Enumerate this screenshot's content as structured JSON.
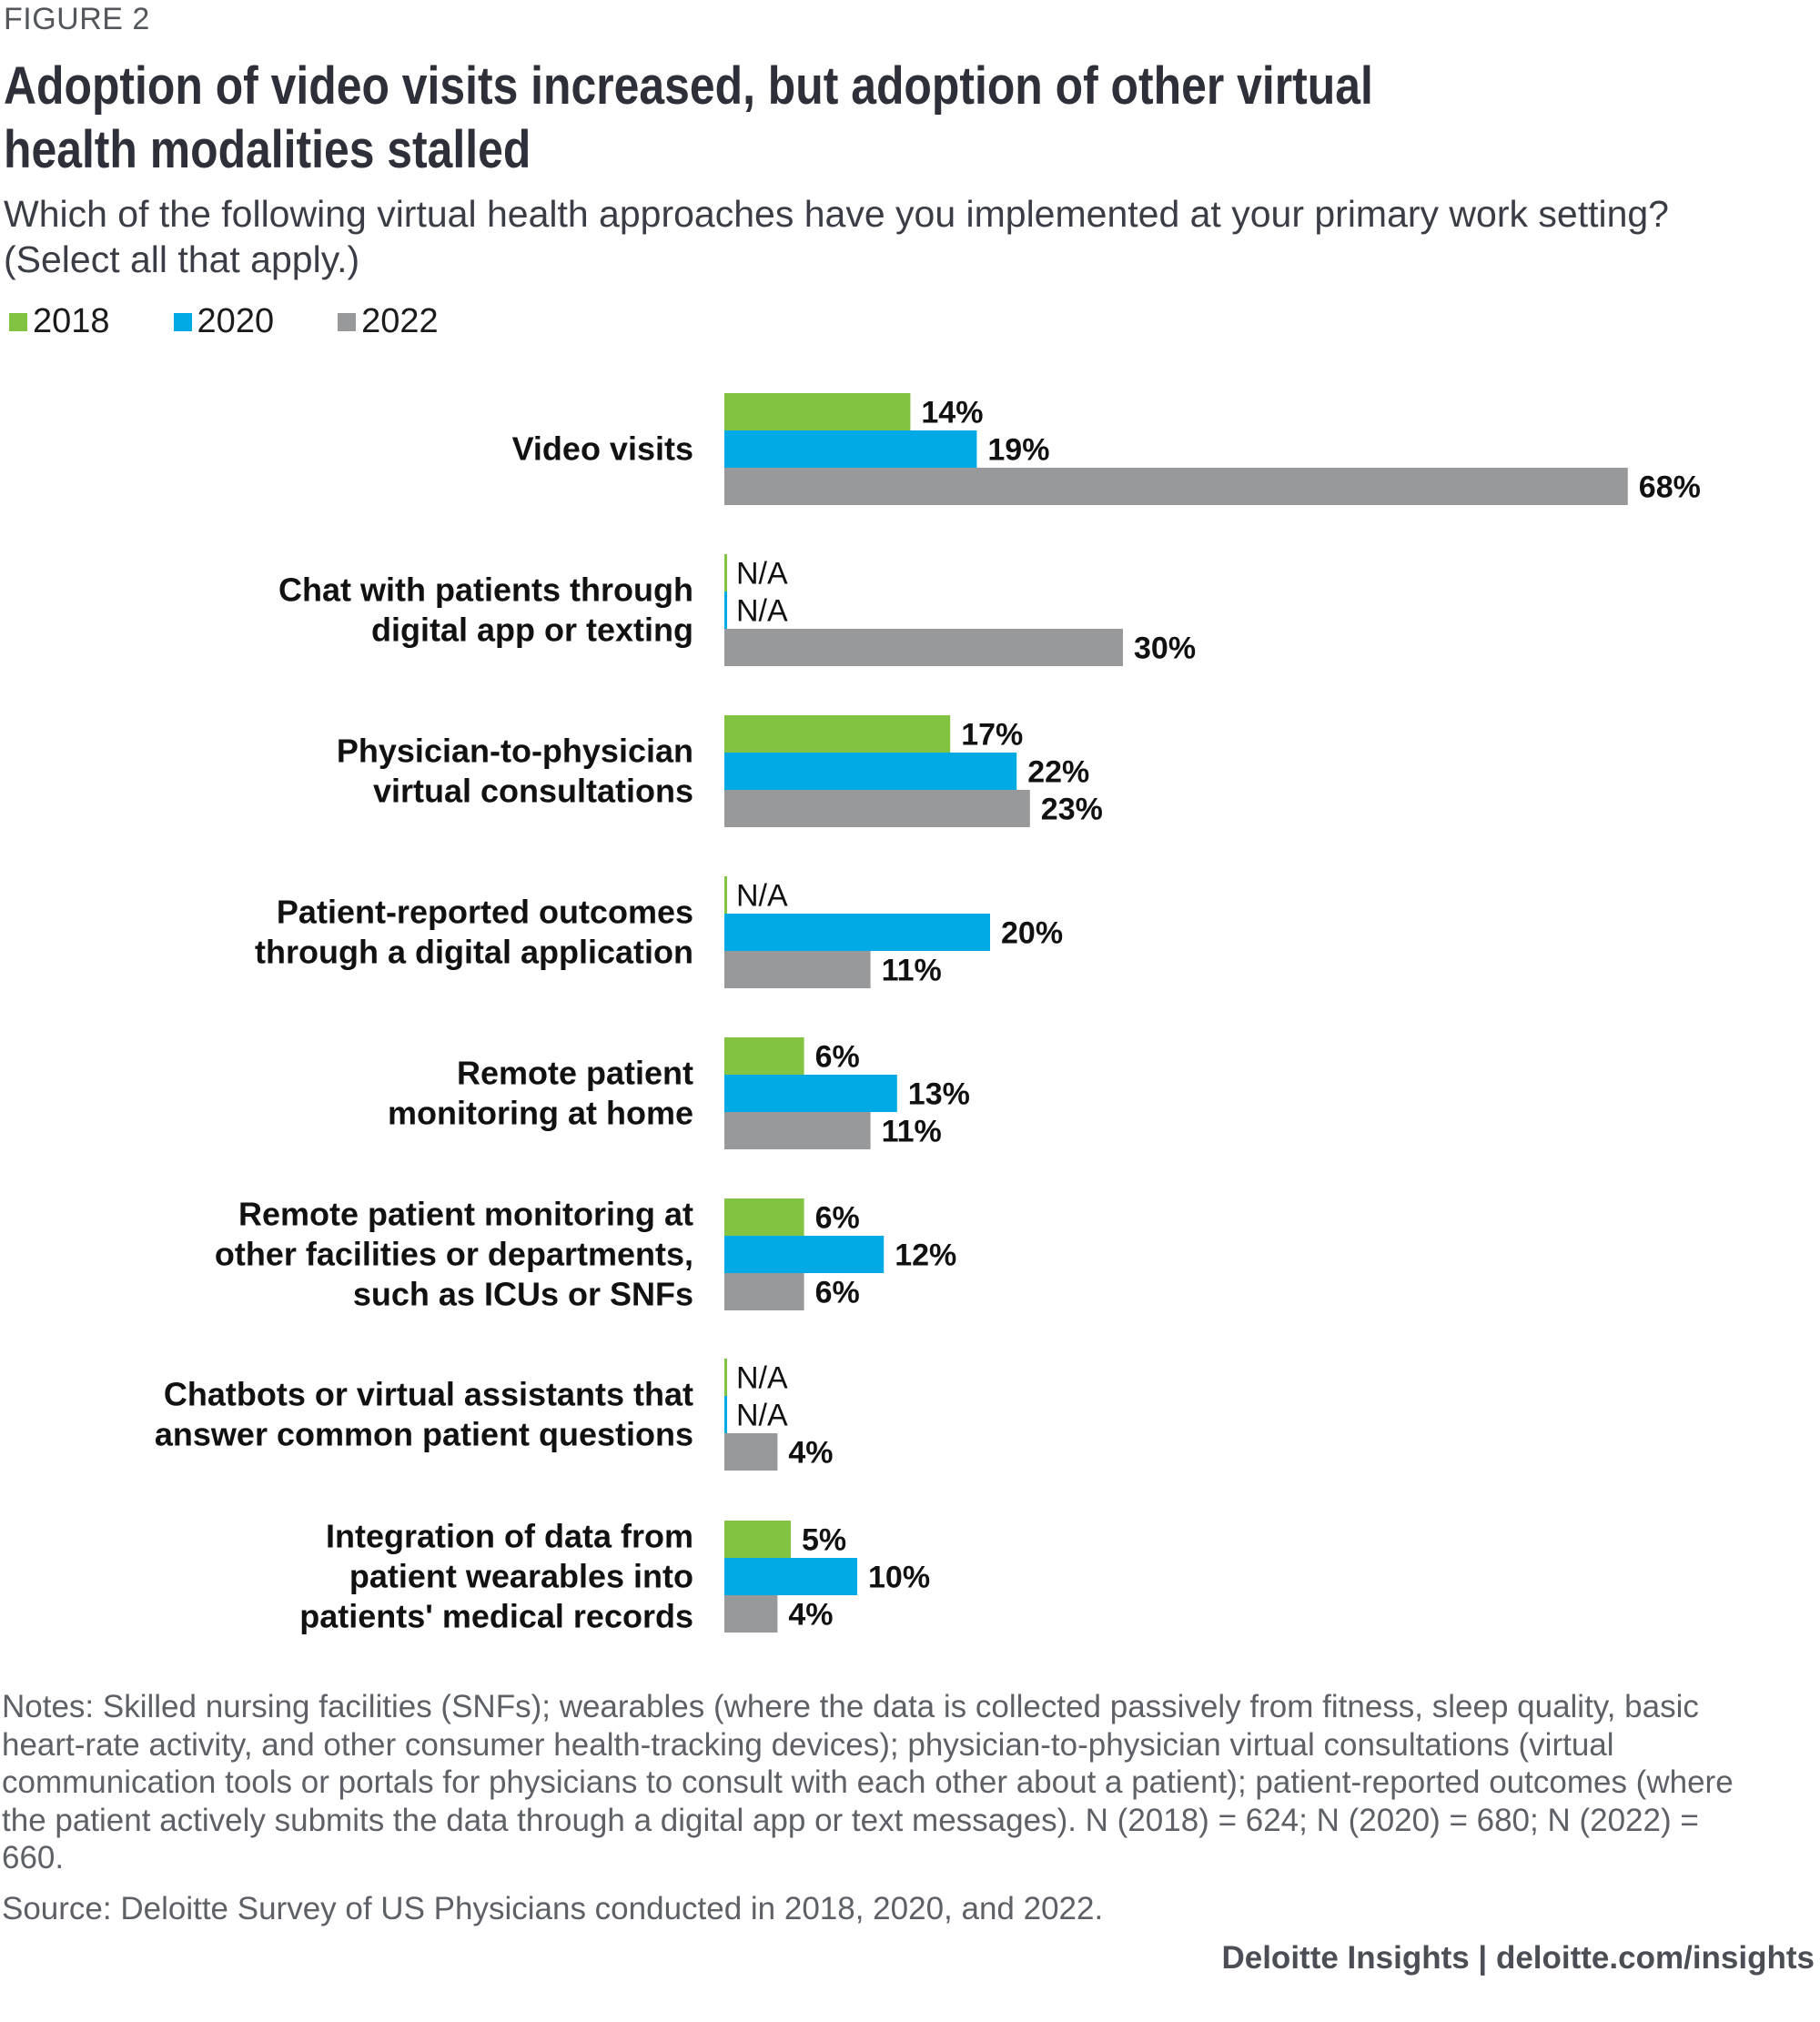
{
  "figure_label": "FIGURE 2",
  "title": "Adoption of video visits increased, but adoption of other virtual health modalities stalled",
  "subtitle": "Which of the following virtual health approaches have you implemented at your primary work setting? (Select all that apply.)",
  "colors": {
    "2018": "#82c341",
    "2020": "#00abe5",
    "2022": "#97999b"
  },
  "chart_data": {
    "type": "bar",
    "orientation": "horizontal",
    "title": "Adoption of video visits increased, but adoption of other virtual health modalities stalled",
    "xlabel": "",
    "ylabel": "",
    "xlim": [
      0,
      70
    ],
    "grid": false,
    "legend_position": "top-left",
    "categories": [
      [
        "Video visits"
      ],
      [
        "Chat with patients through",
        "digital app or texting"
      ],
      [
        "Physician-to-physician",
        "virtual consultations"
      ],
      [
        "Patient-reported outcomes",
        "through a digital application"
      ],
      [
        "Remote patient",
        "monitoring at home"
      ],
      [
        "Remote patient monitoring at",
        "other facilities or departments,",
        "such as ICUs or SNFs"
      ],
      [
        "Chatbots or virtual assistants that",
        "answer common patient questions"
      ],
      [
        "Integration of data from",
        "patient wearables into",
        "patients' medical records"
      ]
    ],
    "series": [
      {
        "name": "2018",
        "values": [
          14,
          null,
          17,
          null,
          6,
          6,
          null,
          5
        ],
        "labels": [
          "14%",
          "N/A",
          "17%",
          "N/A",
          "6%",
          "6%",
          "N/A",
          "5%"
        ]
      },
      {
        "name": "2020",
        "values": [
          19,
          null,
          22,
          20,
          13,
          12,
          null,
          10
        ],
        "labels": [
          "19%",
          "N/A",
          "22%",
          "20%",
          "13%",
          "12%",
          "N/A",
          "10%"
        ]
      },
      {
        "name": "2022",
        "values": [
          68,
          30,
          23,
          11,
          11,
          6,
          4,
          4
        ],
        "labels": [
          "68%",
          "30%",
          "23%",
          "11%",
          "11%",
          "6%",
          "4%",
          "4%"
        ]
      }
    ]
  },
  "legend": [
    {
      "label": "2018"
    },
    {
      "label": "2020"
    },
    {
      "label": "2022"
    }
  ],
  "notes": "Notes: Skilled nursing facilities (SNFs); wearables (where the data is collected passively from fitness, sleep quality, basic heart-rate activity, and other consumer health-tracking devices); physician-to-physician virtual consultations (virtual communication tools or portals for physicians to consult with each other about a patient); patient-reported outcomes (where the patient actively submits the data through a digital app or text messages). N (2018) = 624; N (2020) = 680; N (2022) = 660.",
  "source": "Source: Deloitte Survey of US Physicians conducted in 2018, 2020, and 2022.",
  "credit": "Deloitte Insights | deloitte.com/insights"
}
